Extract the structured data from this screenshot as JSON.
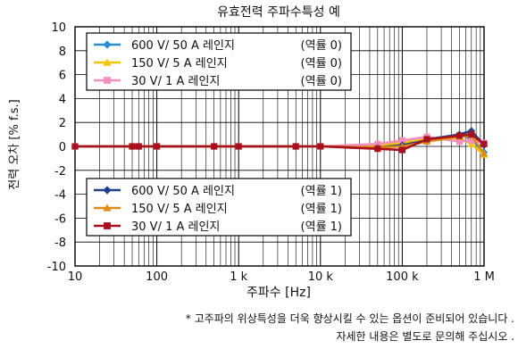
{
  "chart_data": {
    "type": "line",
    "title": "유효전력 주파수특성 예",
    "xlabel": "주파수 [Hz]",
    "ylabel": "전력 오차 [% f.s.]",
    "xscale": "log",
    "xlim": [
      10,
      1000000
    ],
    "ylim": [
      -10,
      10
    ],
    "xticks": [
      {
        "value": 10,
        "label": "10"
      },
      {
        "value": 100,
        "label": "100"
      },
      {
        "value": 1000,
        "label": "1 k"
      },
      {
        "value": 10000,
        "label": "10 k"
      },
      {
        "value": 100000,
        "label": "100 k"
      },
      {
        "value": 1000000,
        "label": "1 M"
      }
    ],
    "yticks": [
      -10,
      -8,
      -6,
      -4,
      -2,
      0,
      2,
      4,
      6,
      8,
      10
    ],
    "grid": true,
    "series": [
      {
        "name": "600 V/ 50 A 레인지",
        "pf": "(역률 0)",
        "color": "#2a8fd0",
        "marker": "diamond",
        "legend": "top",
        "x": [
          10,
          50,
          60,
          100,
          500,
          1000,
          5000,
          10000,
          50000,
          100000,
          200000,
          500000,
          700000,
          1000000
        ],
        "y": [
          0,
          0,
          0,
          0,
          0,
          0,
          0,
          0,
          0.1,
          0.3,
          0.6,
          1.0,
          0.6,
          -0.5
        ]
      },
      {
        "name": "150 V/ 5 A 레인지",
        "pf": "(역률 0)",
        "color": "#f5c400",
        "marker": "triangle",
        "legend": "top",
        "x": [
          10,
          50,
          60,
          100,
          500,
          1000,
          5000,
          10000,
          50000,
          100000,
          200000,
          500000,
          700000,
          1000000
        ],
        "y": [
          0,
          0,
          0,
          0,
          0,
          0,
          0,
          0,
          0.1,
          0.3,
          0.6,
          0.7,
          0.2,
          -0.7
        ]
      },
      {
        "name": "30 V/ 1 A 레인지",
        "pf": "(역률 0)",
        "color": "#f28ec0",
        "marker": "square",
        "legend": "top",
        "x": [
          10,
          50,
          60,
          100,
          500,
          1000,
          5000,
          10000,
          50000,
          100000,
          200000,
          500000,
          700000,
          1000000
        ],
        "y": [
          0,
          0,
          0,
          0,
          0,
          0,
          0,
          0,
          0.2,
          0.5,
          0.8,
          0.4,
          0.5,
          0.3
        ]
      },
      {
        "name": "600 V/ 50 A 레인지",
        "pf": "(역률 1)",
        "color": "#1f3f88",
        "marker": "diamond",
        "legend": "bottom",
        "x": [
          10,
          50,
          60,
          100,
          500,
          1000,
          5000,
          10000,
          50000,
          100000,
          200000,
          500000,
          700000,
          1000000
        ],
        "y": [
          0,
          0,
          0,
          0,
          0,
          0,
          0,
          0,
          -0.1,
          0.1,
          0.5,
          1.0,
          1.3,
          0.1
        ]
      },
      {
        "name": "150 V/ 5 A 레인지",
        "pf": "(역률 1)",
        "color": "#e08a18",
        "marker": "triangle",
        "legend": "bottom",
        "x": [
          10,
          50,
          60,
          100,
          500,
          1000,
          5000,
          10000,
          50000,
          100000,
          200000,
          500000,
          700000,
          1000000
        ],
        "y": [
          0,
          0,
          0,
          0,
          0,
          0,
          0,
          0,
          -0.1,
          0.0,
          0.4,
          0.8,
          0.9,
          -0.6
        ]
      },
      {
        "name": "30 V/ 1 A 레인지",
        "pf": "(역률 1)",
        "color": "#a8101e",
        "marker": "square",
        "legend": "bottom",
        "x": [
          10,
          50,
          60,
          100,
          500,
          1000,
          5000,
          10000,
          50000,
          100000,
          200000,
          500000,
          700000,
          1000000
        ],
        "y": [
          0,
          0,
          0,
          0,
          0,
          0,
          0,
          0,
          -0.2,
          -0.3,
          0.6,
          0.9,
          1.0,
          0.2
        ]
      }
    ]
  },
  "notes": {
    "line1": "* 고주파의 위상특성을 더욱 향상시킬 수 있는 옵션이 준비되어 있습니다 .",
    "line2": "자세한 내용은 별도로 문의해 주십시오 ."
  }
}
